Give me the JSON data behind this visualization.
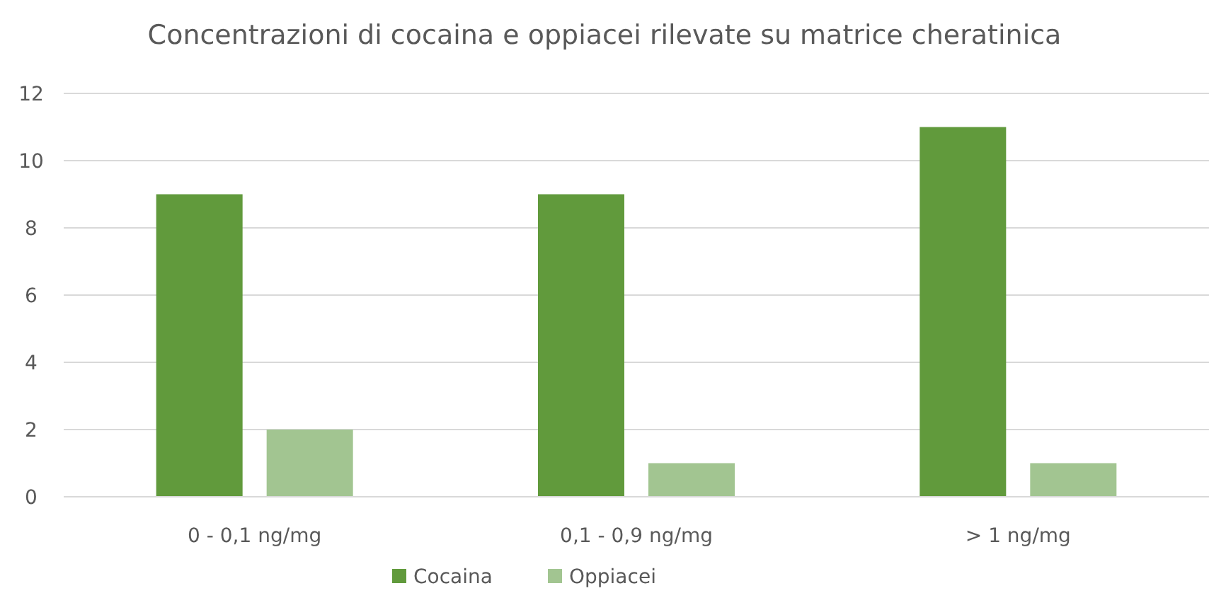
{
  "chart_data": {
    "type": "bar",
    "title": "Concentrazioni di cocaina e oppiacei rilevate su matrice cheratinica",
    "categories": [
      "0 - 0,1 ng/mg",
      "0,1 - 0,9 ng/mg",
      "> 1 ng/mg"
    ],
    "series": [
      {
        "name": "Cocaina",
        "color": "#619a3c",
        "values": [
          9,
          9,
          11
        ]
      },
      {
        "name": "Oppiacei",
        "color": "#a2c591",
        "values": [
          2,
          1,
          1
        ]
      }
    ],
    "ylim": [
      0,
      12
    ],
    "yticks": [
      0,
      2,
      4,
      6,
      8,
      10,
      12
    ],
    "grid": "y",
    "legend": "bottom"
  }
}
